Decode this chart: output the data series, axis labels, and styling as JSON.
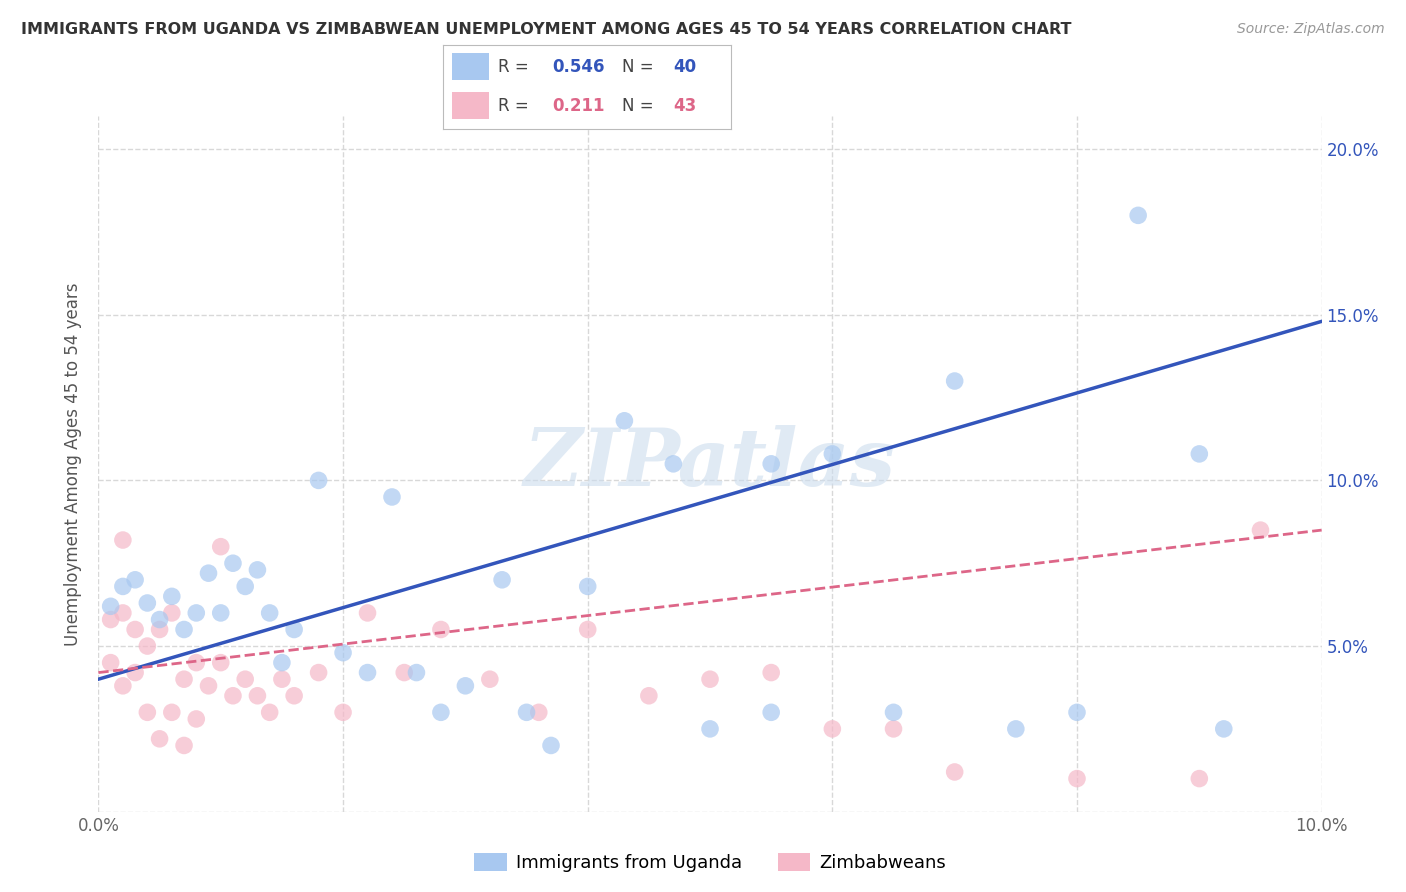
{
  "title": "IMMIGRANTS FROM UGANDA VS ZIMBABWEAN UNEMPLOYMENT AMONG AGES 45 TO 54 YEARS CORRELATION CHART",
  "source": "Source: ZipAtlas.com",
  "ylabel": "Unemployment Among Ages 45 to 54 years",
  "legend_label1": "Immigrants from Uganda",
  "legend_label2": "Zimbabweans",
  "r1": 0.546,
  "n1": 40,
  "r2": 0.211,
  "n2": 43,
  "xlim": [
    0.0,
    0.1
  ],
  "ylim": [
    0.0,
    0.21
  ],
  "color_blue": "#a8c8f0",
  "color_pink": "#f5b8c8",
  "line_blue": "#3355bb",
  "line_pink": "#dd6688",
  "blue_scatter_x": [
    0.001,
    0.002,
    0.003,
    0.004,
    0.005,
    0.006,
    0.007,
    0.008,
    0.009,
    0.01,
    0.011,
    0.012,
    0.013,
    0.014,
    0.016,
    0.018,
    0.02,
    0.022,
    0.024,
    0.026,
    0.028,
    0.03,
    0.033,
    0.037,
    0.04,
    0.043,
    0.047,
    0.05,
    0.055,
    0.06,
    0.065,
    0.07,
    0.075,
    0.08,
    0.085,
    0.09,
    0.092,
    0.055,
    0.035,
    0.015
  ],
  "blue_scatter_y": [
    0.062,
    0.068,
    0.07,
    0.063,
    0.058,
    0.065,
    0.055,
    0.06,
    0.072,
    0.06,
    0.075,
    0.068,
    0.073,
    0.06,
    0.055,
    0.1,
    0.048,
    0.042,
    0.095,
    0.042,
    0.03,
    0.038,
    0.07,
    0.02,
    0.068,
    0.118,
    0.105,
    0.025,
    0.03,
    0.108,
    0.03,
    0.13,
    0.025,
    0.03,
    0.18,
    0.108,
    0.025,
    0.105,
    0.03,
    0.045
  ],
  "pink_scatter_x": [
    0.001,
    0.001,
    0.002,
    0.002,
    0.003,
    0.003,
    0.004,
    0.004,
    0.005,
    0.005,
    0.006,
    0.006,
    0.007,
    0.007,
    0.008,
    0.008,
    0.009,
    0.01,
    0.011,
    0.012,
    0.013,
    0.014,
    0.015,
    0.016,
    0.018,
    0.02,
    0.022,
    0.025,
    0.028,
    0.032,
    0.036,
    0.04,
    0.045,
    0.05,
    0.055,
    0.06,
    0.065,
    0.07,
    0.08,
    0.09,
    0.095,
    0.002,
    0.01
  ],
  "pink_scatter_y": [
    0.058,
    0.045,
    0.06,
    0.038,
    0.055,
    0.042,
    0.05,
    0.03,
    0.055,
    0.022,
    0.06,
    0.03,
    0.04,
    0.02,
    0.045,
    0.028,
    0.038,
    0.045,
    0.035,
    0.04,
    0.035,
    0.03,
    0.04,
    0.035,
    0.042,
    0.03,
    0.06,
    0.042,
    0.055,
    0.04,
    0.03,
    0.055,
    0.035,
    0.04,
    0.042,
    0.025,
    0.025,
    0.012,
    0.01,
    0.01,
    0.085,
    0.082,
    0.08
  ],
  "blue_line_x0": 0.0,
  "blue_line_y0": 0.04,
  "blue_line_x1": 0.1,
  "blue_line_y1": 0.148,
  "pink_line_x0": 0.0,
  "pink_line_y0": 0.042,
  "pink_line_x1": 0.1,
  "pink_line_y1": 0.085,
  "watermark": "ZIPatlas",
  "background_color": "#ffffff",
  "grid_color": "#d8d8d8"
}
